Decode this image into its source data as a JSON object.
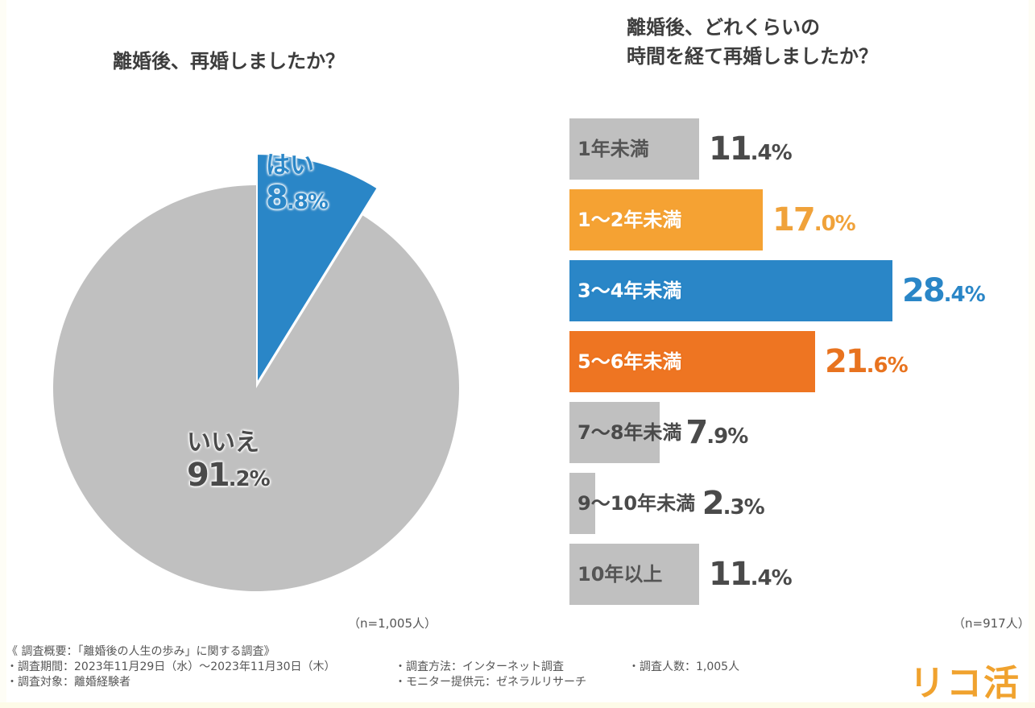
{
  "chart_data": [
    {
      "type": "pie",
      "title": "離婚後、再婚しましたか？",
      "slices": [
        {
          "label": "はい",
          "value": 8.8,
          "display": "8.8%",
          "color": "#2a86c7"
        },
        {
          "label": "いいえ",
          "value": 91.2,
          "display": "91.2%",
          "color": "#c0c0c0"
        }
      ],
      "start_angle": "12 o'clock, clockwise",
      "exploded_slice": "はい",
      "sample": "（n=1,005人）"
    },
    {
      "type": "bar",
      "orientation": "horizontal",
      "title_lines": [
        "離婚後、どれくらいの",
        "時間を経て再婚しましたか？"
      ],
      "categories": [
        "1年未満",
        "1〜2年未満",
        "3〜4年未満",
        "5〜6年未満",
        "7〜8年未満",
        "9〜10年未満",
        "10年以上"
      ],
      "values": [
        11.4,
        17.0,
        28.4,
        21.6,
        7.9,
        2.3,
        11.4
      ],
      "value_labels": [
        "11.4%",
        "17.0%",
        "28.4%",
        "21.6%",
        "7.9%",
        "2.3%",
        "11.4%"
      ],
      "unit": "%",
      "colors": [
        "#c0c0c0",
        "#f5a233",
        "#2a86c7",
        "#ee7522",
        "#c0c0c0",
        "#c0c0c0",
        "#c0c0c0"
      ],
      "label_colors": [
        "#555555",
        "#ffffff",
        "#ffffff",
        "#ffffff",
        "#4a4a4a",
        "#4a4a4a",
        "#555555"
      ],
      "value_colors": [
        "#4a4a4a",
        "#f0a23a",
        "#2a86c7",
        "#e8731f",
        "#4a4a4a",
        "#4a4a4a",
        "#4a4a4a"
      ],
      "grid": false,
      "sample": "（n=917人）"
    }
  ],
  "footer": {
    "heading": "《 調査概要：「離婚後の人生の歩み」に関する調査》",
    "period": "調査期間：2023年11月29日（水）〜2023年11月30日（木）",
    "target": "調査対象：離婚経験者",
    "method": "調査方法：インターネット調査",
    "provider": "モニター提供元：ゼネラルリサーチ",
    "count": "調査人数：1,005人"
  },
  "logo": "リコ活"
}
